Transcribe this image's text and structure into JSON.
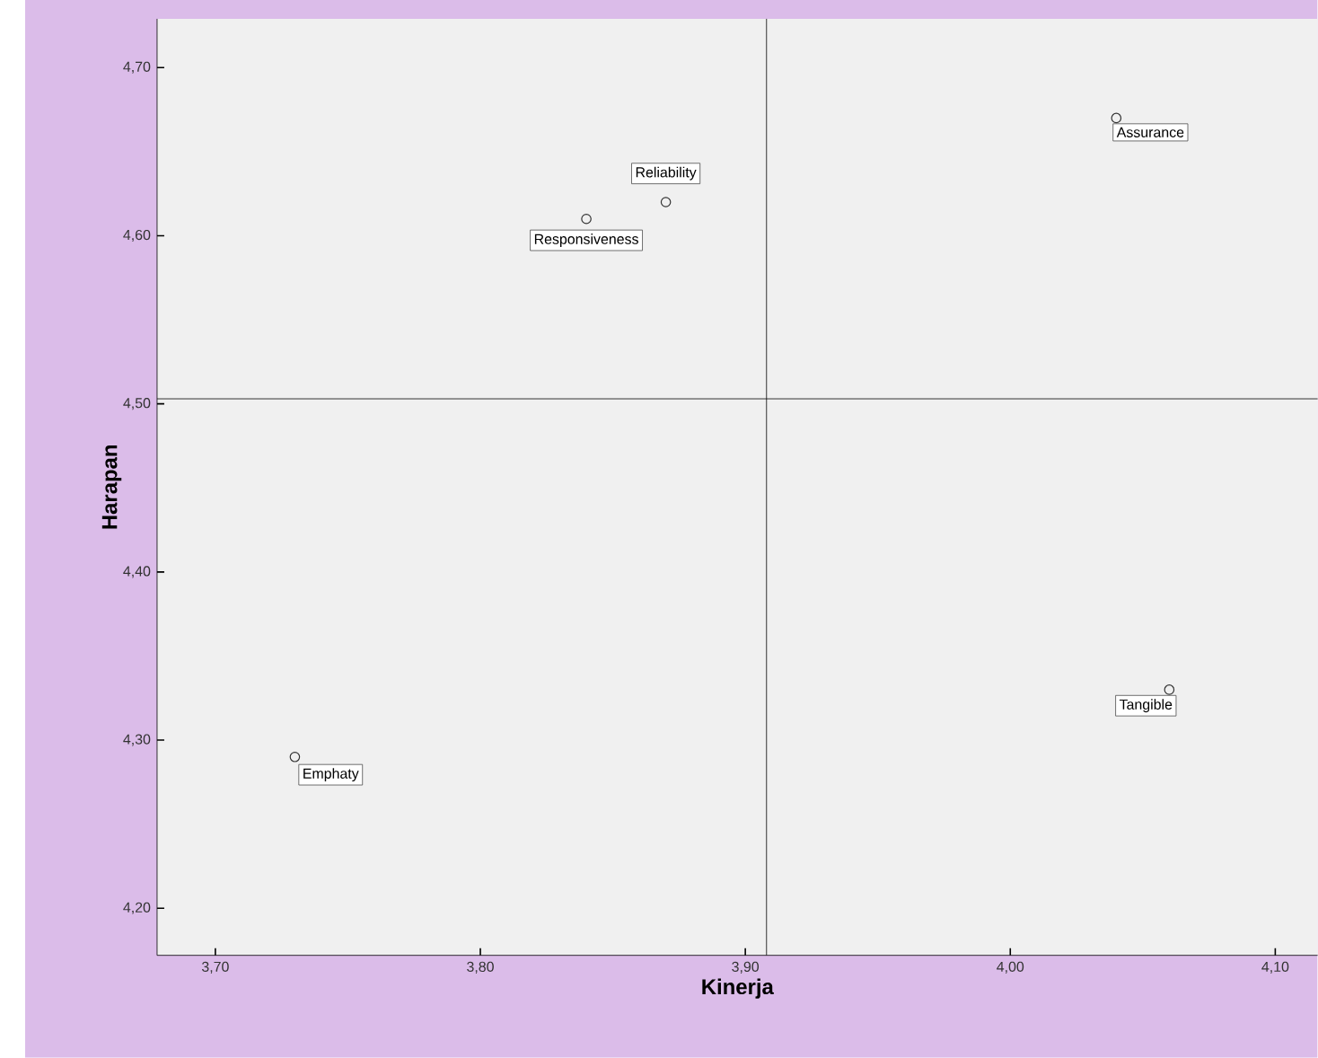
{
  "chart_data": {
    "type": "scatter",
    "xlabel": "Kinerja",
    "ylabel": "Harapan",
    "x": [
      3.73,
      3.84,
      3.87,
      4.04,
      4.06
    ],
    "values": [
      4.29,
      4.61,
      4.62,
      4.67,
      4.33
    ],
    "color": "#333333",
    "marker": "circle",
    "xlim": [
      3.678,
      4.116
    ],
    "ylim": [
      4.172,
      4.729
    ],
    "xticks": [
      {
        "value": 3.7,
        "label": "3,70"
      },
      {
        "value": 3.8,
        "label": "3,80"
      },
      {
        "value": 3.9,
        "label": "3,90"
      },
      {
        "value": 4.0,
        "label": "4,00"
      },
      {
        "value": 4.1,
        "label": "4,10"
      }
    ],
    "yticks": [
      {
        "value": 4.2,
        "label": "4,20"
      },
      {
        "value": 4.3,
        "label": "4,30"
      },
      {
        "value": 4.4,
        "label": "4,40"
      },
      {
        "value": 4.5,
        "label": "4,50"
      },
      {
        "value": 4.6,
        "label": "4,60"
      },
      {
        "value": 4.7,
        "label": "4,70"
      }
    ],
    "grid": false,
    "ref_lines": [
      {
        "axis": "x",
        "value": 3.908,
        "color": "#000000"
      },
      {
        "axis": "y",
        "value": 4.503,
        "color": "#000000"
      }
    ],
    "annotations": [
      {
        "text": "Emphaty",
        "x": 3.73,
        "y": 4.29
      },
      {
        "text": "Responsiveness",
        "x": 3.84,
        "y": 4.61
      },
      {
        "text": "Reliability",
        "x": 3.87,
        "y": 4.62
      },
      {
        "text": "Assurance",
        "x": 4.04,
        "y": 4.67
      },
      {
        "text": "Tangible",
        "x": 4.06,
        "y": 4.33
      }
    ]
  }
}
